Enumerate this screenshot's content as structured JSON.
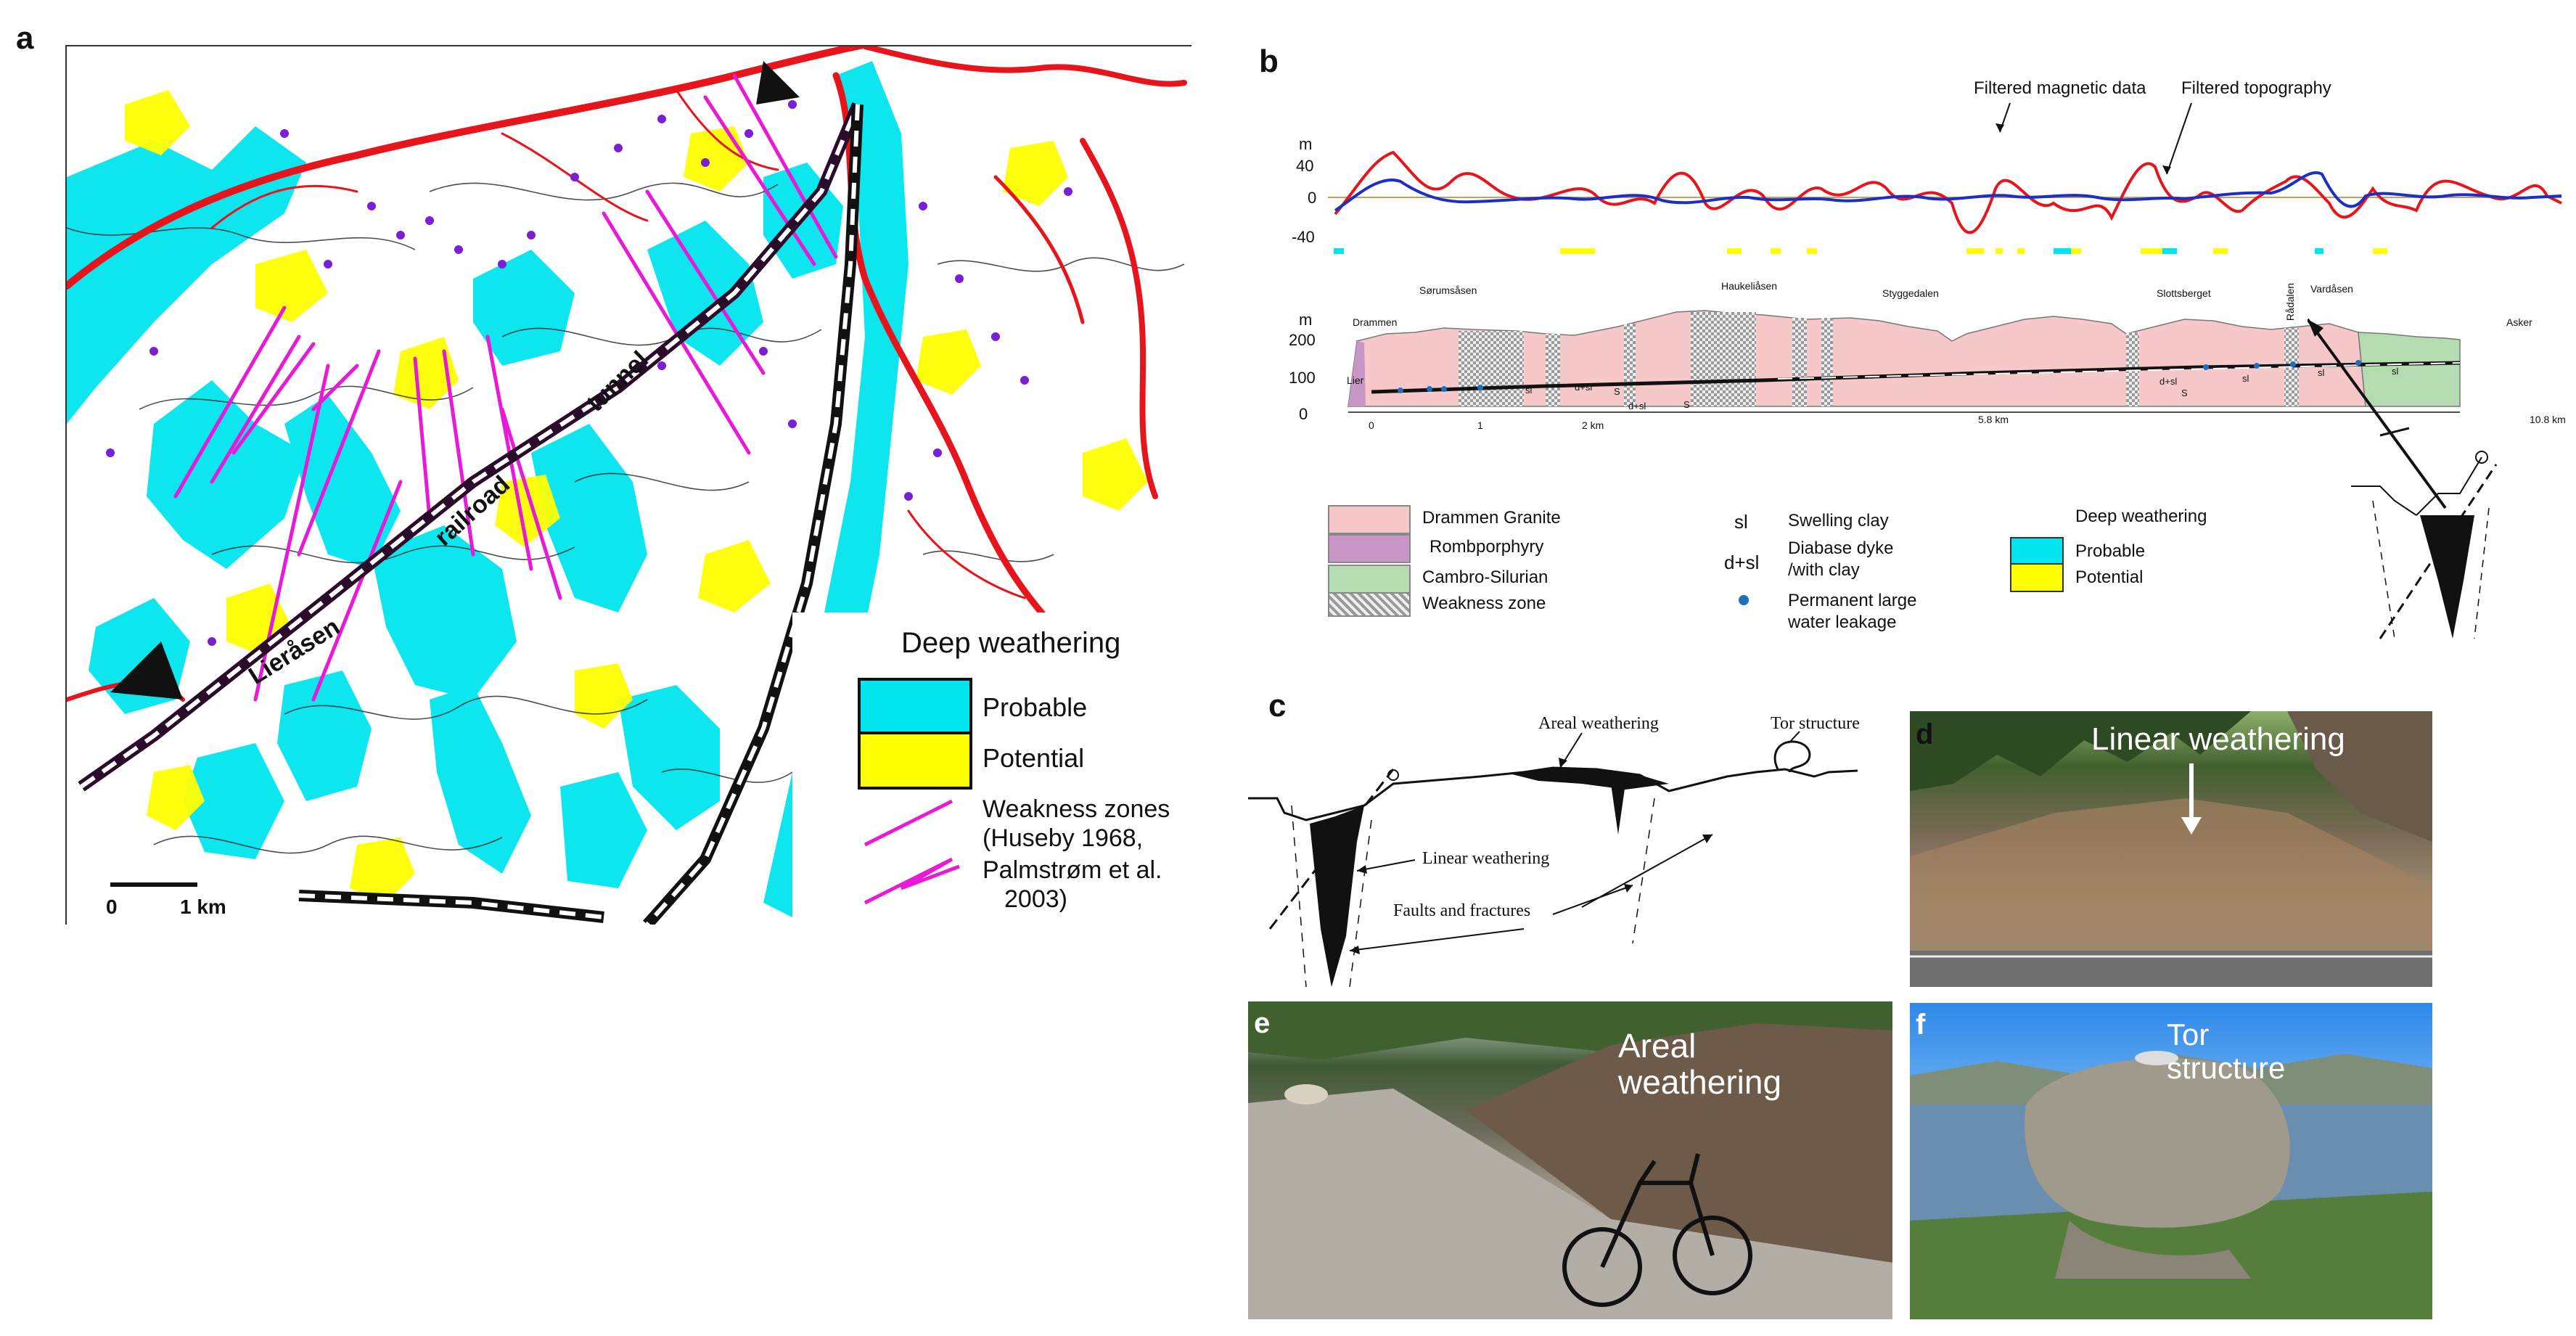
{
  "panels": {
    "a": "a",
    "b": "b",
    "c": "c",
    "d": "d",
    "e": "e",
    "f": "f"
  },
  "map_a": {
    "tunnel_label": "tunnel",
    "railroad_label": "railroad",
    "lierasen_label": "Lieråsen",
    "legend_title": "Deep weathering",
    "legend_probable": "Probable",
    "legend_potential": "Potential",
    "legend_weakness_line1": "Weakness zones",
    "legend_weakness_line2": "(Huseby 1968,",
    "legend_weakness_line3": "Palmstrøm et al.",
    "legend_weakness_line4": "2003)",
    "scale_zero": "0",
    "scale_km": "1 km",
    "colors": {
      "probable": "#00e5ee",
      "potential": "#ffff00",
      "roads": "#e8141b",
      "weakness": "#e81ad8",
      "points": "#7a1fd6"
    }
  },
  "profile_b": {
    "label_filtered_magnetic": "Filtered magnetic data",
    "label_filtered_topography": "Filtered topography",
    "upper_unit": "m",
    "upper_ticks": [
      "40",
      "0",
      "-40"
    ],
    "lower_unit": "m",
    "lower_ticks": [
      "200",
      "100",
      "0"
    ],
    "end_left": "Drammen",
    "end_right": "Asker",
    "places": [
      "Sørumsåsen",
      "Haukeliåsen",
      "Styggedalen",
      "Slottsberget",
      "Rådalen",
      "Vardåsen"
    ],
    "lier": "Lier",
    "distance_ticks": [
      "0",
      "1",
      "2 km",
      "5.8 km",
      "10.8 km"
    ],
    "inline_labels": [
      "d+sl",
      "d+sl",
      "sl",
      "S",
      "S",
      "d+sl",
      "sl",
      "S",
      "sl",
      "sl"
    ],
    "colors": {
      "granite": "#f6c8c9",
      "rombporphyry": "#c896c4",
      "cambro": "#b5dcb0",
      "magnetic": "#e8141b",
      "topography": "#1c2fc4"
    }
  },
  "legend_b": {
    "granite": "Drammen Granite",
    "rombporphyry": "Rombporphyry",
    "cambro": "Cambro-Silurian",
    "weakness": "Weakness zone",
    "sl_symbol": "sl",
    "sl_text": "Swelling clay",
    "dsl_symbol": "d+sl",
    "dsl_line1": "Diabase dyke",
    "dsl_line2": "/with clay",
    "leak_line1": "Permanent large",
    "leak_line2": "water leakage",
    "deep_title": "Deep weathering",
    "probable": "Probable",
    "potential": "Potential"
  },
  "sketch_c": {
    "areal": "Areal weathering",
    "tor": "Tor structure",
    "linear": "Linear weathering",
    "faults": "Faults and fractures"
  },
  "photo_d": {
    "label": "Linear weathering"
  },
  "photo_e": {
    "label_line1": "Areal",
    "label_line2": "weathering"
  },
  "photo_f": {
    "label_line1": "Tor",
    "label_line2": "structure"
  }
}
